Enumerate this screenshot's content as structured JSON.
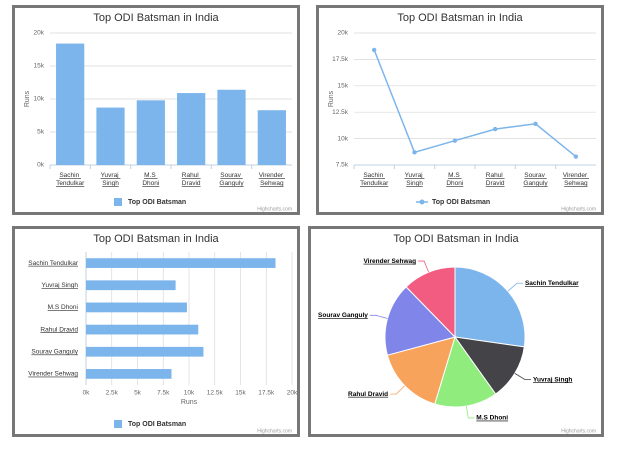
{
  "chart_data": [
    {
      "type": "bar",
      "title": "Top ODI Batsman in India",
      "categories": [
        "Sachin Tendulkar",
        "Yuvraj Singh",
        "M.S Dhoni",
        "Rahul Dravid",
        "Sourav Ganguly",
        "Virender Sehwag"
      ],
      "series": [
        {
          "name": "Top ODI Batsman",
          "color": "#7cb5ec",
          "values": [
            18400,
            8700,
            9800,
            10900,
            11400,
            8300
          ]
        }
      ],
      "y_label": "Runs",
      "ylim": [
        0,
        20000
      ],
      "yticks": [
        {
          "value": 0,
          "label": "0k"
        },
        {
          "value": 5000,
          "label": "5k"
        },
        {
          "value": 10000,
          "label": "10k"
        },
        {
          "value": 15000,
          "label": "15k"
        },
        {
          "value": 20000,
          "label": "20k"
        }
      ],
      "grid": true,
      "credits": "Highcharts.com"
    },
    {
      "type": "line",
      "title": "Top ODI Batsman in India",
      "categories": [
        "Sachin Tendulkar",
        "Yuvraj Singh",
        "M.S Dhoni",
        "Rahul Dravid",
        "Sourav Ganguly",
        "Virender Sehwag"
      ],
      "series": [
        {
          "name": "Top ODI Batsman",
          "color": "#7cb5ec",
          "values": [
            18400,
            8700,
            9800,
            10900,
            11400,
            8300
          ]
        }
      ],
      "y_label": "Runs",
      "ylim": [
        7500,
        20000
      ],
      "yticks": [
        {
          "value": 7500,
          "label": "7.5k"
        },
        {
          "value": 10000,
          "label": "10k"
        },
        {
          "value": 12500,
          "label": "12.5k"
        },
        {
          "value": 15000,
          "label": "15k"
        },
        {
          "value": 17500,
          "label": "17.5k"
        },
        {
          "value": 20000,
          "label": "20k"
        }
      ],
      "grid": true,
      "credits": "Highcharts.com"
    },
    {
      "type": "hbar",
      "title": "Top ODI Batsman in India",
      "categories": [
        "Sachin Tendulkar",
        "Yuvraj Singh",
        "M.S Dhoni",
        "Rahul Dravid",
        "Sourav Ganguly",
        "Virender Sehwag"
      ],
      "series": [
        {
          "name": "Top ODI Batsman",
          "color": "#7cb5ec",
          "values": [
            18400,
            8700,
            9800,
            10900,
            11400,
            8300
          ]
        }
      ],
      "x_label": "Runs",
      "xlim": [
        0,
        20000
      ],
      "xticks": [
        {
          "value": 0,
          "label": "0k"
        },
        {
          "value": 2500,
          "label": "2.5k"
        },
        {
          "value": 5000,
          "label": "5k"
        },
        {
          "value": 7500,
          "label": "7.5k"
        },
        {
          "value": 10000,
          "label": "10k"
        },
        {
          "value": 12500,
          "label": "12.5k"
        },
        {
          "value": 15000,
          "label": "15k"
        },
        {
          "value": 17500,
          "label": "17.5k"
        },
        {
          "value": 20000,
          "label": "20k"
        }
      ],
      "grid": true,
      "credits": "Highcharts.com"
    },
    {
      "type": "pie",
      "title": "Top ODI Batsman in India",
      "categories": [
        "Sachin Tendulkar",
        "Yuvraj Singh",
        "M.S Dhoni",
        "Rahul Dravid",
        "Sourav Ganguly",
        "Virender Sehwag"
      ],
      "values": [
        18400,
        8700,
        9800,
        10900,
        11400,
        8300
      ],
      "colors": [
        "#7cb5ec",
        "#434348",
        "#90ed7d",
        "#f7a35c",
        "#8085e9",
        "#f15c80"
      ],
      "credits": "Highcharts.com"
    }
  ]
}
